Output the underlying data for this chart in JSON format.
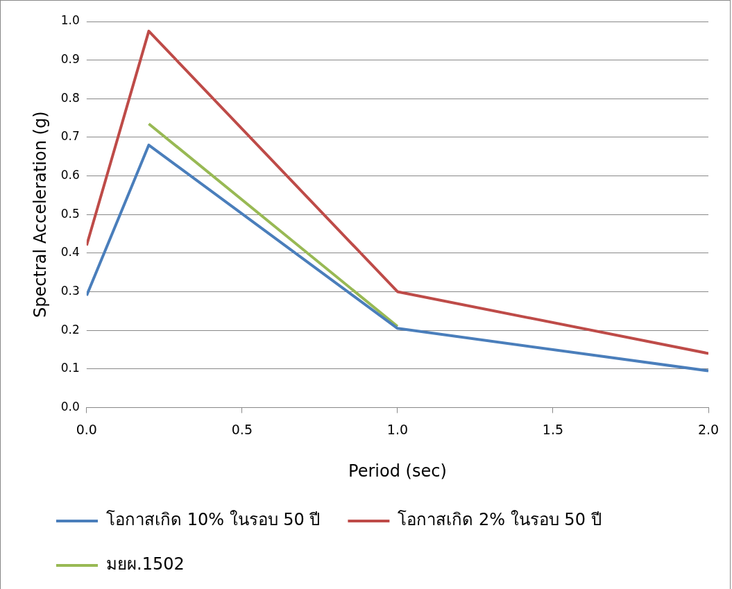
{
  "chart_data": {
    "type": "line",
    "xlabel": "Period (sec)",
    "ylabel": "Spectral Acceleration (g)",
    "xlim": [
      0,
      2
    ],
    "xticks": [
      {
        "value": 0,
        "label": "0.0"
      },
      {
        "value": 0.5,
        "label": "0.5"
      },
      {
        "value": 1,
        "label": "1.0"
      },
      {
        "value": 1.5,
        "label": "1.5"
      },
      {
        "value": 2,
        "label": "2.0"
      }
    ],
    "ylim": [
      0,
      1
    ],
    "yticks": [
      {
        "value": 0,
        "label": "0.0"
      },
      {
        "value": 0.1,
        "label": "0.1"
      },
      {
        "value": 0.2,
        "label": "0.2"
      },
      {
        "value": 0.3,
        "label": "0.3"
      },
      {
        "value": 0.4,
        "label": "0.4"
      },
      {
        "value": 0.5,
        "label": "0.5"
      },
      {
        "value": 0.6,
        "label": "0.6"
      },
      {
        "value": 0.7,
        "label": "0.7"
      },
      {
        "value": 0.8,
        "label": "0.8"
      },
      {
        "value": 0.9,
        "label": "0.9"
      },
      {
        "value": 1,
        "label": "1.0"
      }
    ],
    "grid": "y",
    "legend": "bottom",
    "marker": "none",
    "line_style": "solid",
    "series": [
      {
        "name": "โอกาสเกิด 10% ในรอบ 50 ปี",
        "color": "#4a7ebb",
        "x": [
          0,
          0.2,
          1,
          2
        ],
        "values": [
          0.29,
          0.68,
          0.205,
          0.095
        ]
      },
      {
        "name": "โอกาสเกิด 2% ในรอบ 50 ปี",
        "color": "#be4b48",
        "x": [
          0,
          0.2,
          1,
          2
        ],
        "values": [
          0.42,
          0.975,
          0.3,
          0.14
        ]
      },
      {
        "name": "มยผ.1502",
        "color": "#98b954",
        "x": [
          0.2,
          1
        ],
        "values": [
          0.735,
          0.21
        ]
      }
    ]
  }
}
